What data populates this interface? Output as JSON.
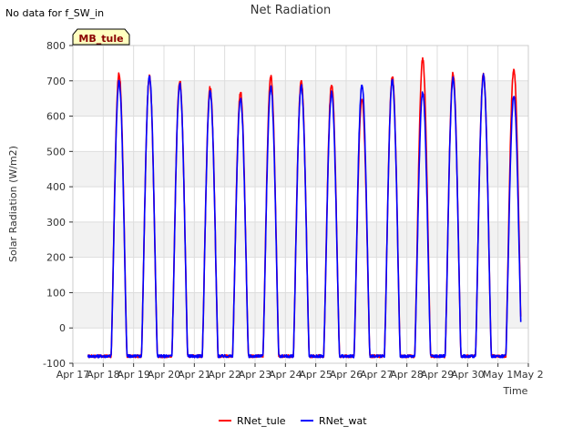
{
  "note_text": "No data for f_SW_in",
  "badge_text": "MB_tule",
  "colors": {
    "RNet_tule": "#ff0000",
    "RNet_wat": "#0000ff",
    "band": "#f2f2f2",
    "grid": "#dddddd",
    "badge_bg": "#ffffc0"
  },
  "chart_data": {
    "type": "line",
    "title": "Net Radiation",
    "xlabel": "Time",
    "ylabel": "Solar Radiation (W/m2)",
    "ylim": [
      -100,
      800
    ],
    "yticks": [
      -100,
      0,
      100,
      200,
      300,
      400,
      500,
      600,
      700,
      800
    ],
    "xlim": [
      "2023-04-17",
      "2023-05-02"
    ],
    "xtick_labels": [
      "Apr 17",
      "Apr 18",
      "Apr 19",
      "Apr 20",
      "Apr 21",
      "Apr 22",
      "Apr 23",
      "Apr 24",
      "Apr 25",
      "Apr 26",
      "Apr 27",
      "Apr 28",
      "Apr 29",
      "Apr 30",
      "May 1",
      "May 2"
    ],
    "grid": true,
    "legend_position": "bottom-center",
    "data_start": "2023-04-17T12:00",
    "data_end": "2023-05-01T18:00",
    "night_value": -80,
    "days": [
      "2023-04-18",
      "2023-04-19",
      "2023-04-20",
      "2023-04-21",
      "2023-04-22",
      "2023-04-23",
      "2023-04-24",
      "2023-04-25",
      "2023-04-26",
      "2023-04-27",
      "2023-04-28",
      "2023-04-29",
      "2023-04-30",
      "2023-05-01"
    ],
    "series": [
      {
        "name": "RNet_tule",
        "peaks": [
          722,
          712,
          700,
          680,
          668,
          712,
          700,
          690,
          650,
          712,
          760,
          720,
          718,
          732
        ]
      },
      {
        "name": "RNet_wat",
        "peaks": [
          700,
          715,
          690,
          670,
          650,
          682,
          685,
          665,
          690,
          700,
          665,
          705,
          715,
          655
        ]
      }
    ]
  }
}
